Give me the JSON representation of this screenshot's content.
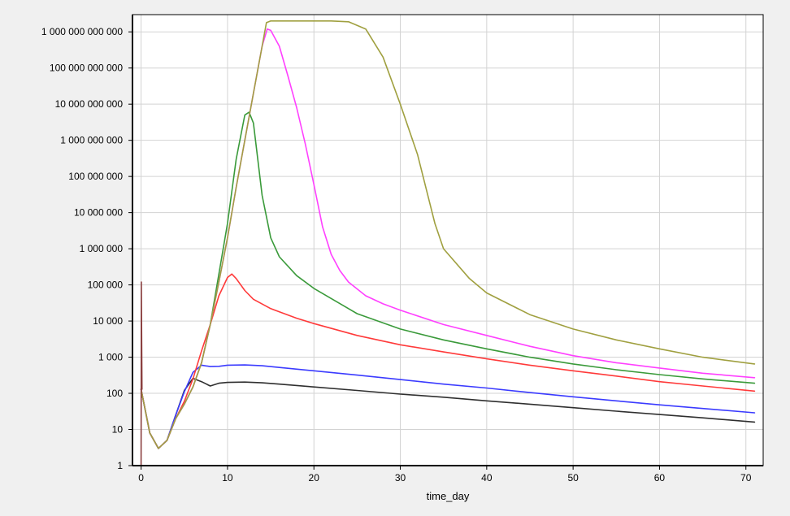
{
  "chart_data": {
    "type": "line",
    "title": "",
    "xlabel": "time_day",
    "ylabel": "",
    "xscale": "linear",
    "yscale": "log",
    "xlim": [
      -1,
      72
    ],
    "ylim": [
      1,
      3000000000000
    ],
    "grid": true,
    "legend": "none",
    "background": "#f0f0f0",
    "plot_background": "#ffffff",
    "grid_color": "#d3d3d3",
    "x_ticks": [
      0,
      10,
      20,
      30,
      40,
      50,
      60,
      70
    ],
    "x_tick_labels": [
      "0",
      "10",
      "20",
      "30",
      "40",
      "50",
      "60",
      "70"
    ],
    "y_ticks": [
      1,
      10,
      100,
      1000,
      10000,
      100000,
      1000000,
      10000000,
      100000000,
      1000000000,
      10000000000,
      100000000000,
      1000000000000
    ],
    "y_tick_labels": [
      "1",
      "10",
      "100",
      "1 000",
      "10 000",
      "100 000",
      "1 000 000",
      "10 000 000",
      "100 000 000",
      "1 000 000 000",
      "10 000 000 000",
      "100 000 000 000",
      "1 000 000 000 000"
    ],
    "series": [
      {
        "color": "#2f2f2f",
        "x": [
          0,
          1,
          2,
          3,
          4,
          5,
          6,
          7,
          8,
          9,
          10,
          12,
          14,
          16,
          20,
          25,
          30,
          35,
          40,
          45,
          50,
          55,
          60,
          65,
          71
        ],
        "y": [
          130,
          8,
          3,
          5,
          25,
          120,
          260,
          210,
          160,
          190,
          200,
          205,
          195,
          180,
          150,
          120,
          95,
          78,
          62,
          50,
          40,
          32,
          26,
          21,
          16
        ]
      },
      {
        "color": "#3b3bff",
        "x": [
          0,
          1,
          2,
          3,
          4,
          5,
          6,
          7,
          8,
          9,
          10,
          12,
          14,
          16,
          20,
          25,
          30,
          35,
          40,
          45,
          50,
          55,
          60,
          65,
          71
        ],
        "y": [
          130,
          8,
          3,
          5,
          25,
          110,
          380,
          600,
          550,
          560,
          600,
          610,
          580,
          520,
          420,
          320,
          240,
          180,
          140,
          105,
          80,
          62,
          48,
          38,
          29
        ]
      },
      {
        "color": "#ff3a3a",
        "x": [
          0,
          1,
          2,
          3,
          4,
          5,
          6,
          7,
          8,
          9,
          10,
          10.5,
          11,
          12,
          13,
          15,
          18,
          20,
          25,
          30,
          35,
          40,
          45,
          50,
          55,
          60,
          65,
          71
        ],
        "y": [
          130,
          8,
          3,
          5,
          20,
          60,
          250,
          1500,
          8000,
          50000,
          160000,
          200000,
          150000,
          70000,
          40000,
          22000,
          12000,
          8500,
          4000,
          2200,
          1400,
          900,
          600,
          420,
          300,
          210,
          160,
          115
        ]
      },
      {
        "color": "#3a9a3a",
        "x": [
          0,
          1,
          2,
          3,
          4,
          5,
          6,
          7,
          8,
          9,
          10,
          11,
          12,
          12.5,
          13,
          14,
          15,
          16,
          18,
          20,
          25,
          30,
          35,
          40,
          45,
          50,
          55,
          60,
          65,
          71
        ],
        "y": [
          130,
          8,
          3,
          5,
          20,
          50,
          150,
          700,
          8000,
          200000,
          5000000,
          300000000,
          5000000000,
          6000000000,
          3000000000,
          30000000,
          2000000,
          600000,
          180000,
          80000,
          16000,
          6000,
          3000,
          1700,
          1000,
          650,
          450,
          330,
          250,
          190
        ]
      },
      {
        "color": "#ff40ff",
        "x": [
          0,
          1,
          2,
          3,
          4,
          5,
          6,
          7,
          8,
          9,
          10,
          11,
          12,
          13,
          14,
          14.6,
          15,
          16,
          17,
          18,
          19,
          20,
          21,
          22,
          23,
          24,
          26,
          28,
          30,
          35,
          40,
          45,
          50,
          55,
          60,
          65,
          71
        ],
        "y": [
          130,
          8,
          3,
          5,
          20,
          50,
          150,
          700,
          8000,
          120000,
          2000000,
          50000000,
          1000000000,
          20000000000,
          400000000000,
          1200000000000,
          1100000000000,
          400000000000,
          60000000000,
          8000000000,
          800000000,
          60000000,
          4000000,
          700000,
          250000,
          120000,
          50000,
          30000,
          20000,
          8000,
          4000,
          2000,
          1100,
          700,
          500,
          360,
          270
        ]
      },
      {
        "color": "#a0a040",
        "x": [
          0,
          1,
          2,
          3,
          4,
          5,
          6,
          7,
          8,
          9,
          10,
          11,
          12,
          13,
          14,
          14.5,
          15,
          16,
          18,
          20,
          22,
          24,
          26,
          28,
          30,
          32,
          34,
          35,
          38,
          40,
          45,
          50,
          55,
          60,
          65,
          71
        ],
        "y": [
          130,
          8,
          3,
          5,
          20,
          50,
          150,
          700,
          8000,
          120000,
          2000000,
          50000000,
          1000000000,
          20000000000,
          400000000000,
          1800000000000,
          2000000000000,
          2000000000000,
          2000000000000,
          2000000000000,
          2000000000000,
          1900000000000,
          1200000000000,
          200000000000,
          10000000000,
          400000000,
          5000000,
          1000000,
          150000,
          60000,
          15000,
          6000,
          3000,
          1700,
          1000,
          650
        ]
      },
      {
        "color": "#8b4040",
        "x": [
          0,
          0.03,
          0.06,
          0.1
        ],
        "y": [
          1,
          120000,
          3000,
          130
        ]
      }
    ]
  }
}
